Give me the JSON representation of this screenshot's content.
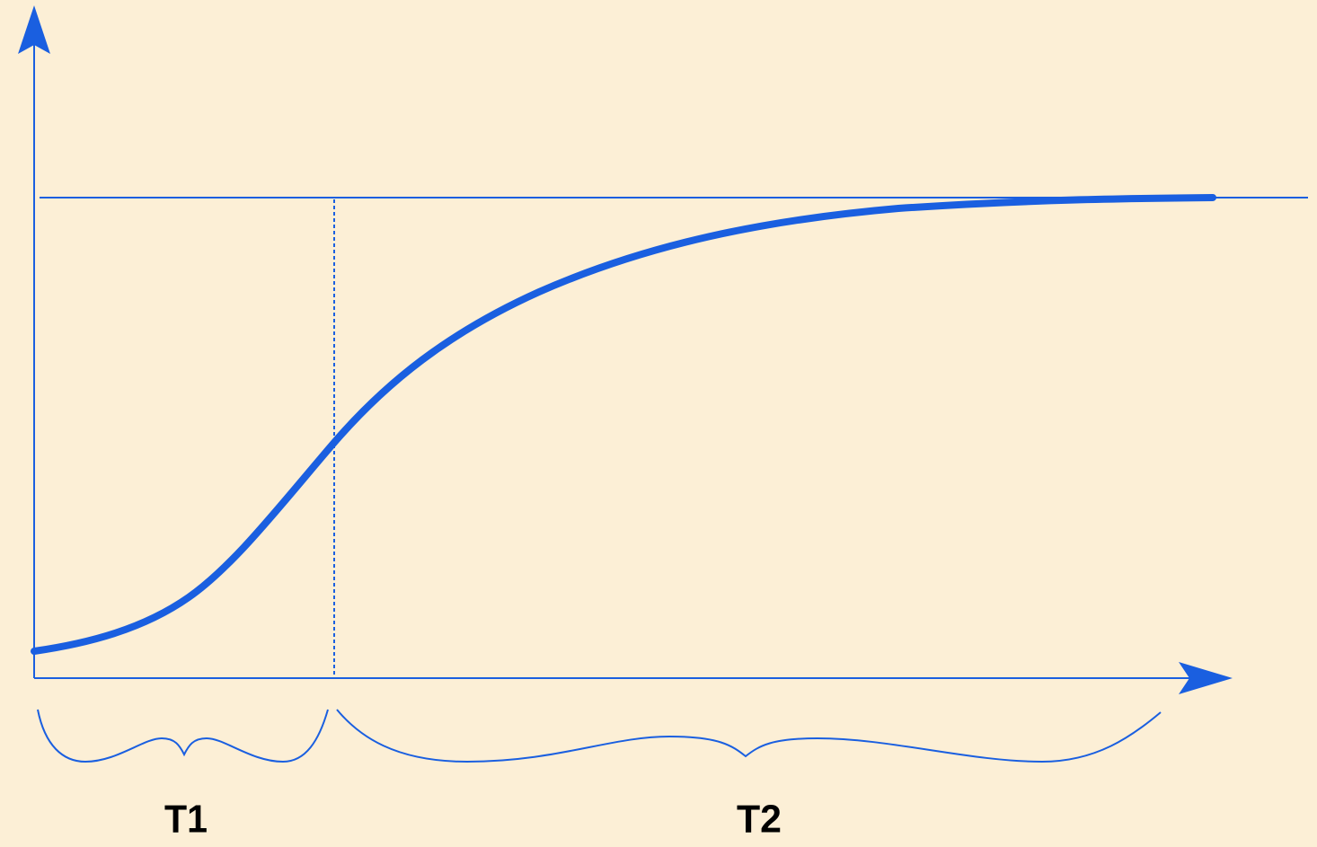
{
  "labels": {
    "t1": "T1",
    "t2": "T2"
  }
}
